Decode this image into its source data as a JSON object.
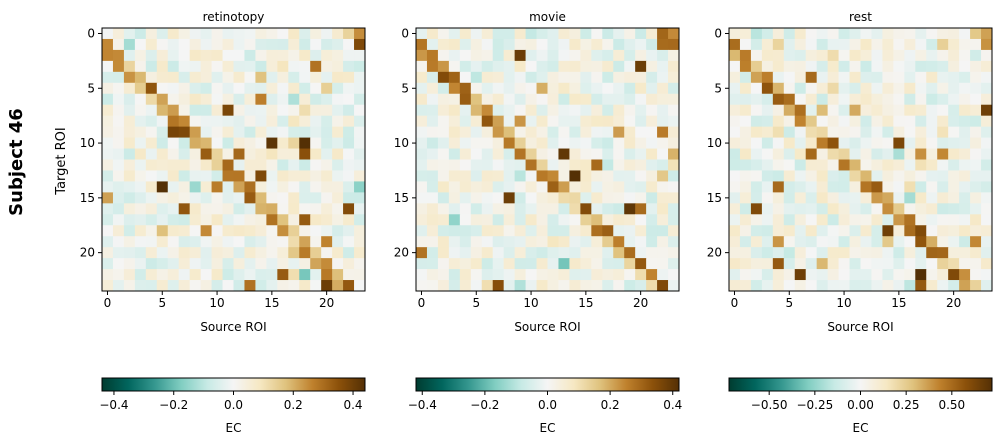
{
  "figure": {
    "suptitle": "Subject 46",
    "y_label": "Target ROI"
  },
  "chart_data": [
    {
      "type": "heatmap",
      "title": "retinotopy",
      "xlabel": "Source ROI",
      "ylabel": "Target ROI",
      "n": 24,
      "xticks": [
        "0",
        "5",
        "10",
        "15",
        "20"
      ],
      "yticks": [
        "0",
        "5",
        "10",
        "15",
        "20"
      ],
      "colormap": "BrBG_r",
      "vmin": -0.44,
      "vmax": 0.44,
      "colorbar_label": "EC",
      "colorbar_ticks": [
        "-0.4",
        "-0.2",
        "0.0",
        "0.2",
        "0.4"
      ],
      "colorbar_tick_values": [
        -0.4,
        -0.2,
        0.0,
        0.2,
        0.4
      ],
      "seed": 46
    },
    {
      "type": "heatmap",
      "title": "movie",
      "xlabel": "Source ROI",
      "ylabel": "",
      "n": 24,
      "xticks": [
        "0",
        "5",
        "10",
        "15",
        "20"
      ],
      "yticks": [
        "0",
        "5",
        "10",
        "15",
        "20"
      ],
      "colormap": "BrBG_r",
      "vmin": -0.42,
      "vmax": 0.42,
      "colorbar_label": "EC",
      "colorbar_ticks": [
        "-0.4",
        "-0.2",
        "0.0",
        "0.2",
        "0.4"
      ],
      "colorbar_tick_values": [
        -0.4,
        -0.2,
        0.0,
        0.2,
        0.4
      ],
      "seed": 146
    },
    {
      "type": "heatmap",
      "title": "rest",
      "xlabel": "Source ROI",
      "ylabel": "",
      "n": 24,
      "xticks": [
        "0",
        "5",
        "10",
        "15",
        "20"
      ],
      "yticks": [
        "0",
        "5",
        "10",
        "15",
        "20"
      ],
      "colormap": "BrBG_r",
      "vmin": -0.72,
      "vmax": 0.72,
      "colorbar_label": "EC",
      "colorbar_ticks": [
        "-0.50",
        "-0.25",
        "0.00",
        "0.25",
        "0.50"
      ],
      "colorbar_tick_values": [
        -0.5,
        -0.25,
        0.0,
        0.25,
        0.5
      ],
      "seed": 246
    }
  ],
  "colors": {
    "brbg_r_stops": [
      "#003c30",
      "#01665e",
      "#35978f",
      "#80cdc1",
      "#c7eae5",
      "#f5f5f5",
      "#f6e8c3",
      "#dfc27d",
      "#bf812d",
      "#8c510a",
      "#543005"
    ]
  }
}
